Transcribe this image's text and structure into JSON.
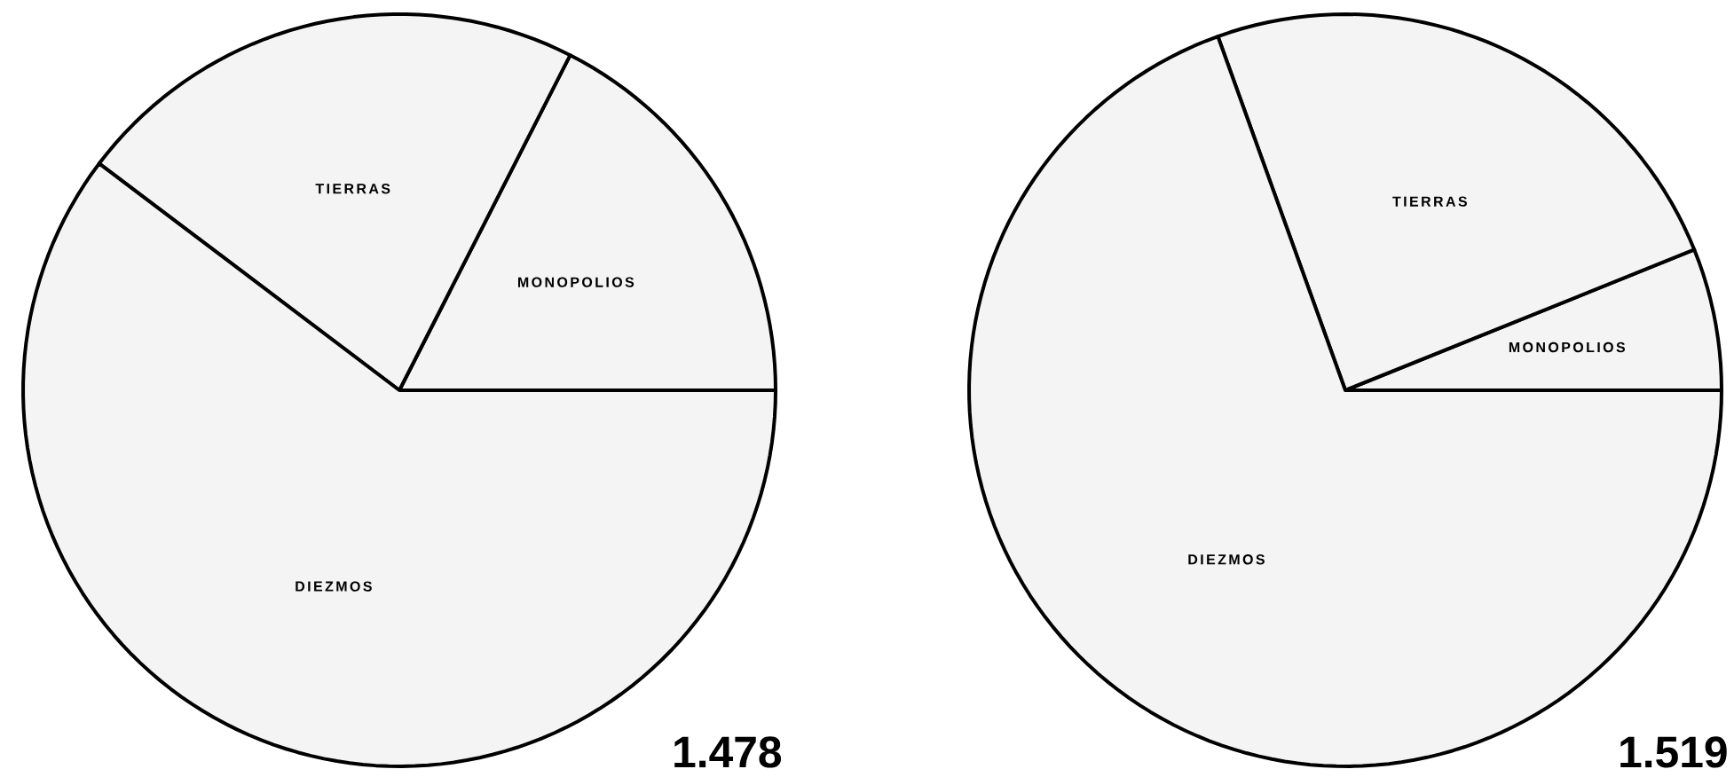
{
  "chart_data": [
    {
      "type": "pie",
      "categories": [
        "MONOPOLIOS",
        "TIERRAS",
        "DIEZMOS"
      ],
      "values": [
        17.5,
        22.2,
        60.3
      ],
      "colors": [
        "#f4f4f4",
        "#f4f4f4",
        "#f4f4f4"
      ],
      "annotations": [
        "1.478"
      ]
    },
    {
      "type": "pie",
      "categories": [
        "MONOPOLIOS",
        "TIERRAS",
        "DIEZMOS"
      ],
      "values": [
        6.1,
        24.4,
        69.5
      ],
      "colors": [
        "#f4f4f4",
        "#f4f4f4",
        "#f4f4f4"
      ],
      "annotations": [
        "1.519"
      ]
    }
  ]
}
